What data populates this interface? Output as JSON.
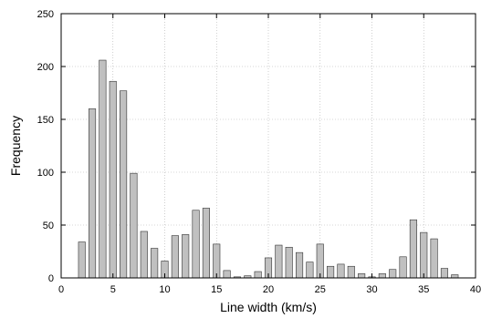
{
  "chart_data": {
    "type": "bar",
    "title": "",
    "xlabel": "Line width (km/s)",
    "ylabel": "Frequency",
    "xlim": [
      0,
      40
    ],
    "ylim": [
      0,
      250
    ],
    "xticks": [
      0,
      5,
      10,
      15,
      20,
      25,
      30,
      35,
      40
    ],
    "yticks": [
      0,
      50,
      100,
      150,
      200,
      250
    ],
    "grid": true,
    "bar_color": "#c0c0c0",
    "bar_edge_color": "#333333",
    "x": [
      2,
      3,
      4,
      5,
      6,
      7,
      8,
      9,
      10,
      11,
      12,
      13,
      14,
      15,
      16,
      17,
      18,
      19,
      20,
      21,
      22,
      23,
      24,
      25,
      26,
      27,
      28,
      29,
      30,
      31,
      32,
      33,
      34,
      35,
      36,
      37,
      38
    ],
    "values": [
      34,
      160,
      206,
      186,
      177,
      99,
      44,
      28,
      16,
      40,
      41,
      64,
      66,
      32,
      7,
      1,
      2,
      6,
      19,
      31,
      29,
      24,
      15,
      32,
      11,
      13,
      11,
      4,
      1,
      4,
      8,
      20,
      55,
      43,
      37,
      9,
      3
    ]
  }
}
